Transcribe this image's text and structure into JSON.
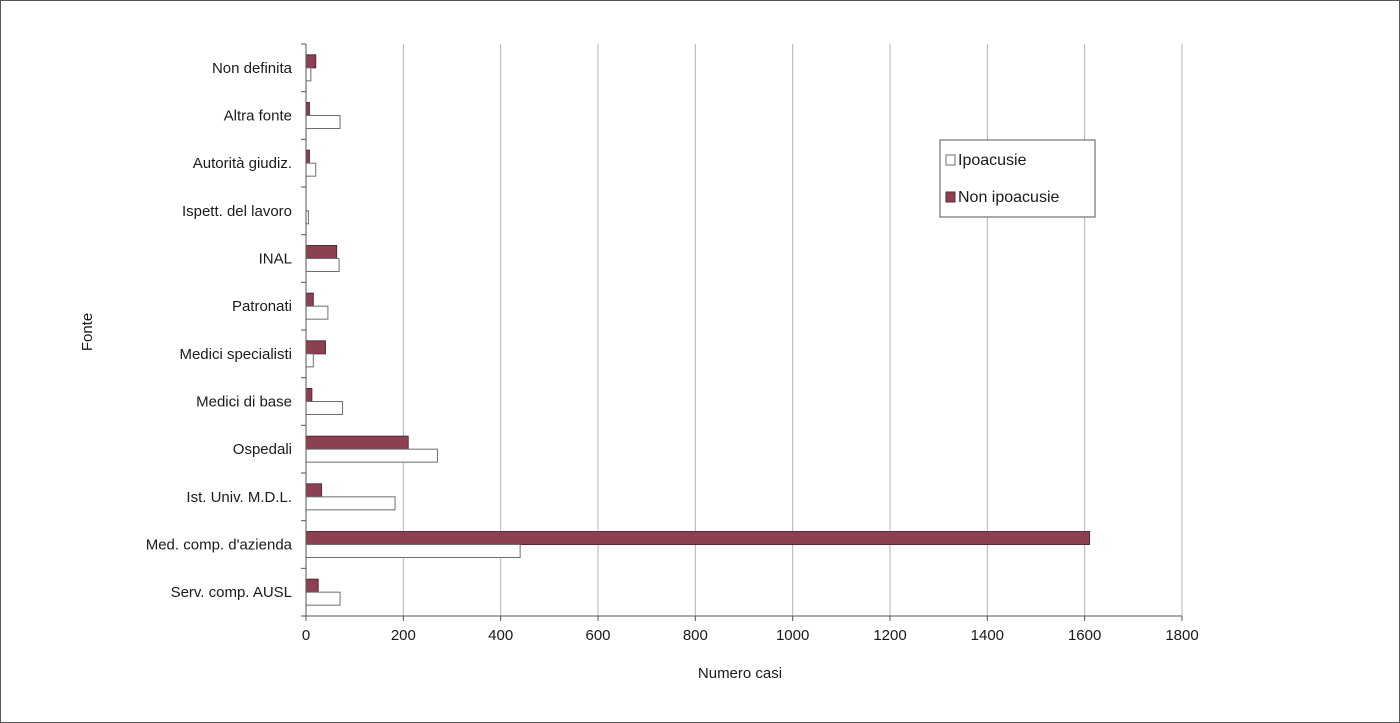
{
  "chart_data": {
    "type": "bar",
    "orientation": "horizontal",
    "categories": [
      "Non definita",
      "Altra fonte",
      "Autorità giudiz.",
      "Ispett. del lavoro",
      "INAL",
      "Patronati",
      "Medici specialisti",
      "Medici di base",
      "Ospedali",
      "Ist. Univ. M.D.L.",
      "Med. comp. d'azienda",
      "Serv. comp. AUSL"
    ],
    "series": [
      {
        "name": "Ipoacusie",
        "color": "#ffffff",
        "stroke": "#6e6e6e",
        "values": [
          10,
          70,
          20,
          5,
          68,
          45,
          15,
          75,
          270,
          183,
          440,
          70
        ]
      },
      {
        "name": "Non ipoacusie",
        "color": "#8c4152",
        "stroke": "#5a2a34",
        "values": [
          20,
          7,
          7,
          0,
          63,
          15,
          40,
          12,
          210,
          32,
          1610,
          25
        ]
      }
    ],
    "xlabel": "Numero casi",
    "ylabel": "Fonte",
    "xlim": [
      0,
      1800
    ],
    "xticks": [
      "0",
      "200",
      "400",
      "600",
      "800",
      "1000",
      "1200",
      "1400",
      "1600",
      "1800"
    ],
    "grid": "vertical",
    "legend_position": "top-right"
  }
}
